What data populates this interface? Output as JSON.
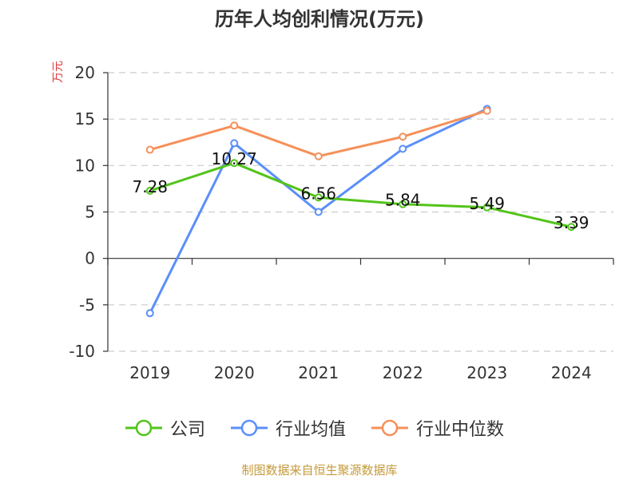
{
  "chart_data": {
    "type": "line",
    "title": "历年人均创利情况(万元)",
    "ylabel": "万元",
    "xlabel": "",
    "categories": [
      "2019",
      "2020",
      "2021",
      "2022",
      "2023",
      "2024"
    ],
    "ylim": [
      -10,
      20
    ],
    "yticks": [
      20,
      15,
      10,
      5,
      0,
      -5,
      -10
    ],
    "ytick_labels": [
      "20",
      "15",
      "10",
      "5",
      "0",
      "-5",
      "-10"
    ],
    "grid": true,
    "legend_position": "bottom",
    "series": [
      {
        "name": "公司",
        "color": "#52c41a",
        "values": [
          7.28,
          10.27,
          6.56,
          5.84,
          5.49,
          3.39
        ],
        "labels": [
          "7.28",
          "10.27",
          "6.56",
          "5.84",
          "5.49",
          "3.39"
        ]
      },
      {
        "name": "行业均值",
        "color": "#5b8ff9",
        "values": [
          -5.9,
          12.4,
          5.0,
          11.8,
          16.1,
          null
        ]
      },
      {
        "name": "行业中位数",
        "color": "#f6905a",
        "values": [
          11.7,
          14.3,
          11.0,
          13.1,
          15.9,
          null
        ]
      }
    ]
  },
  "footer": "制图数据来自恒生聚源数据库"
}
